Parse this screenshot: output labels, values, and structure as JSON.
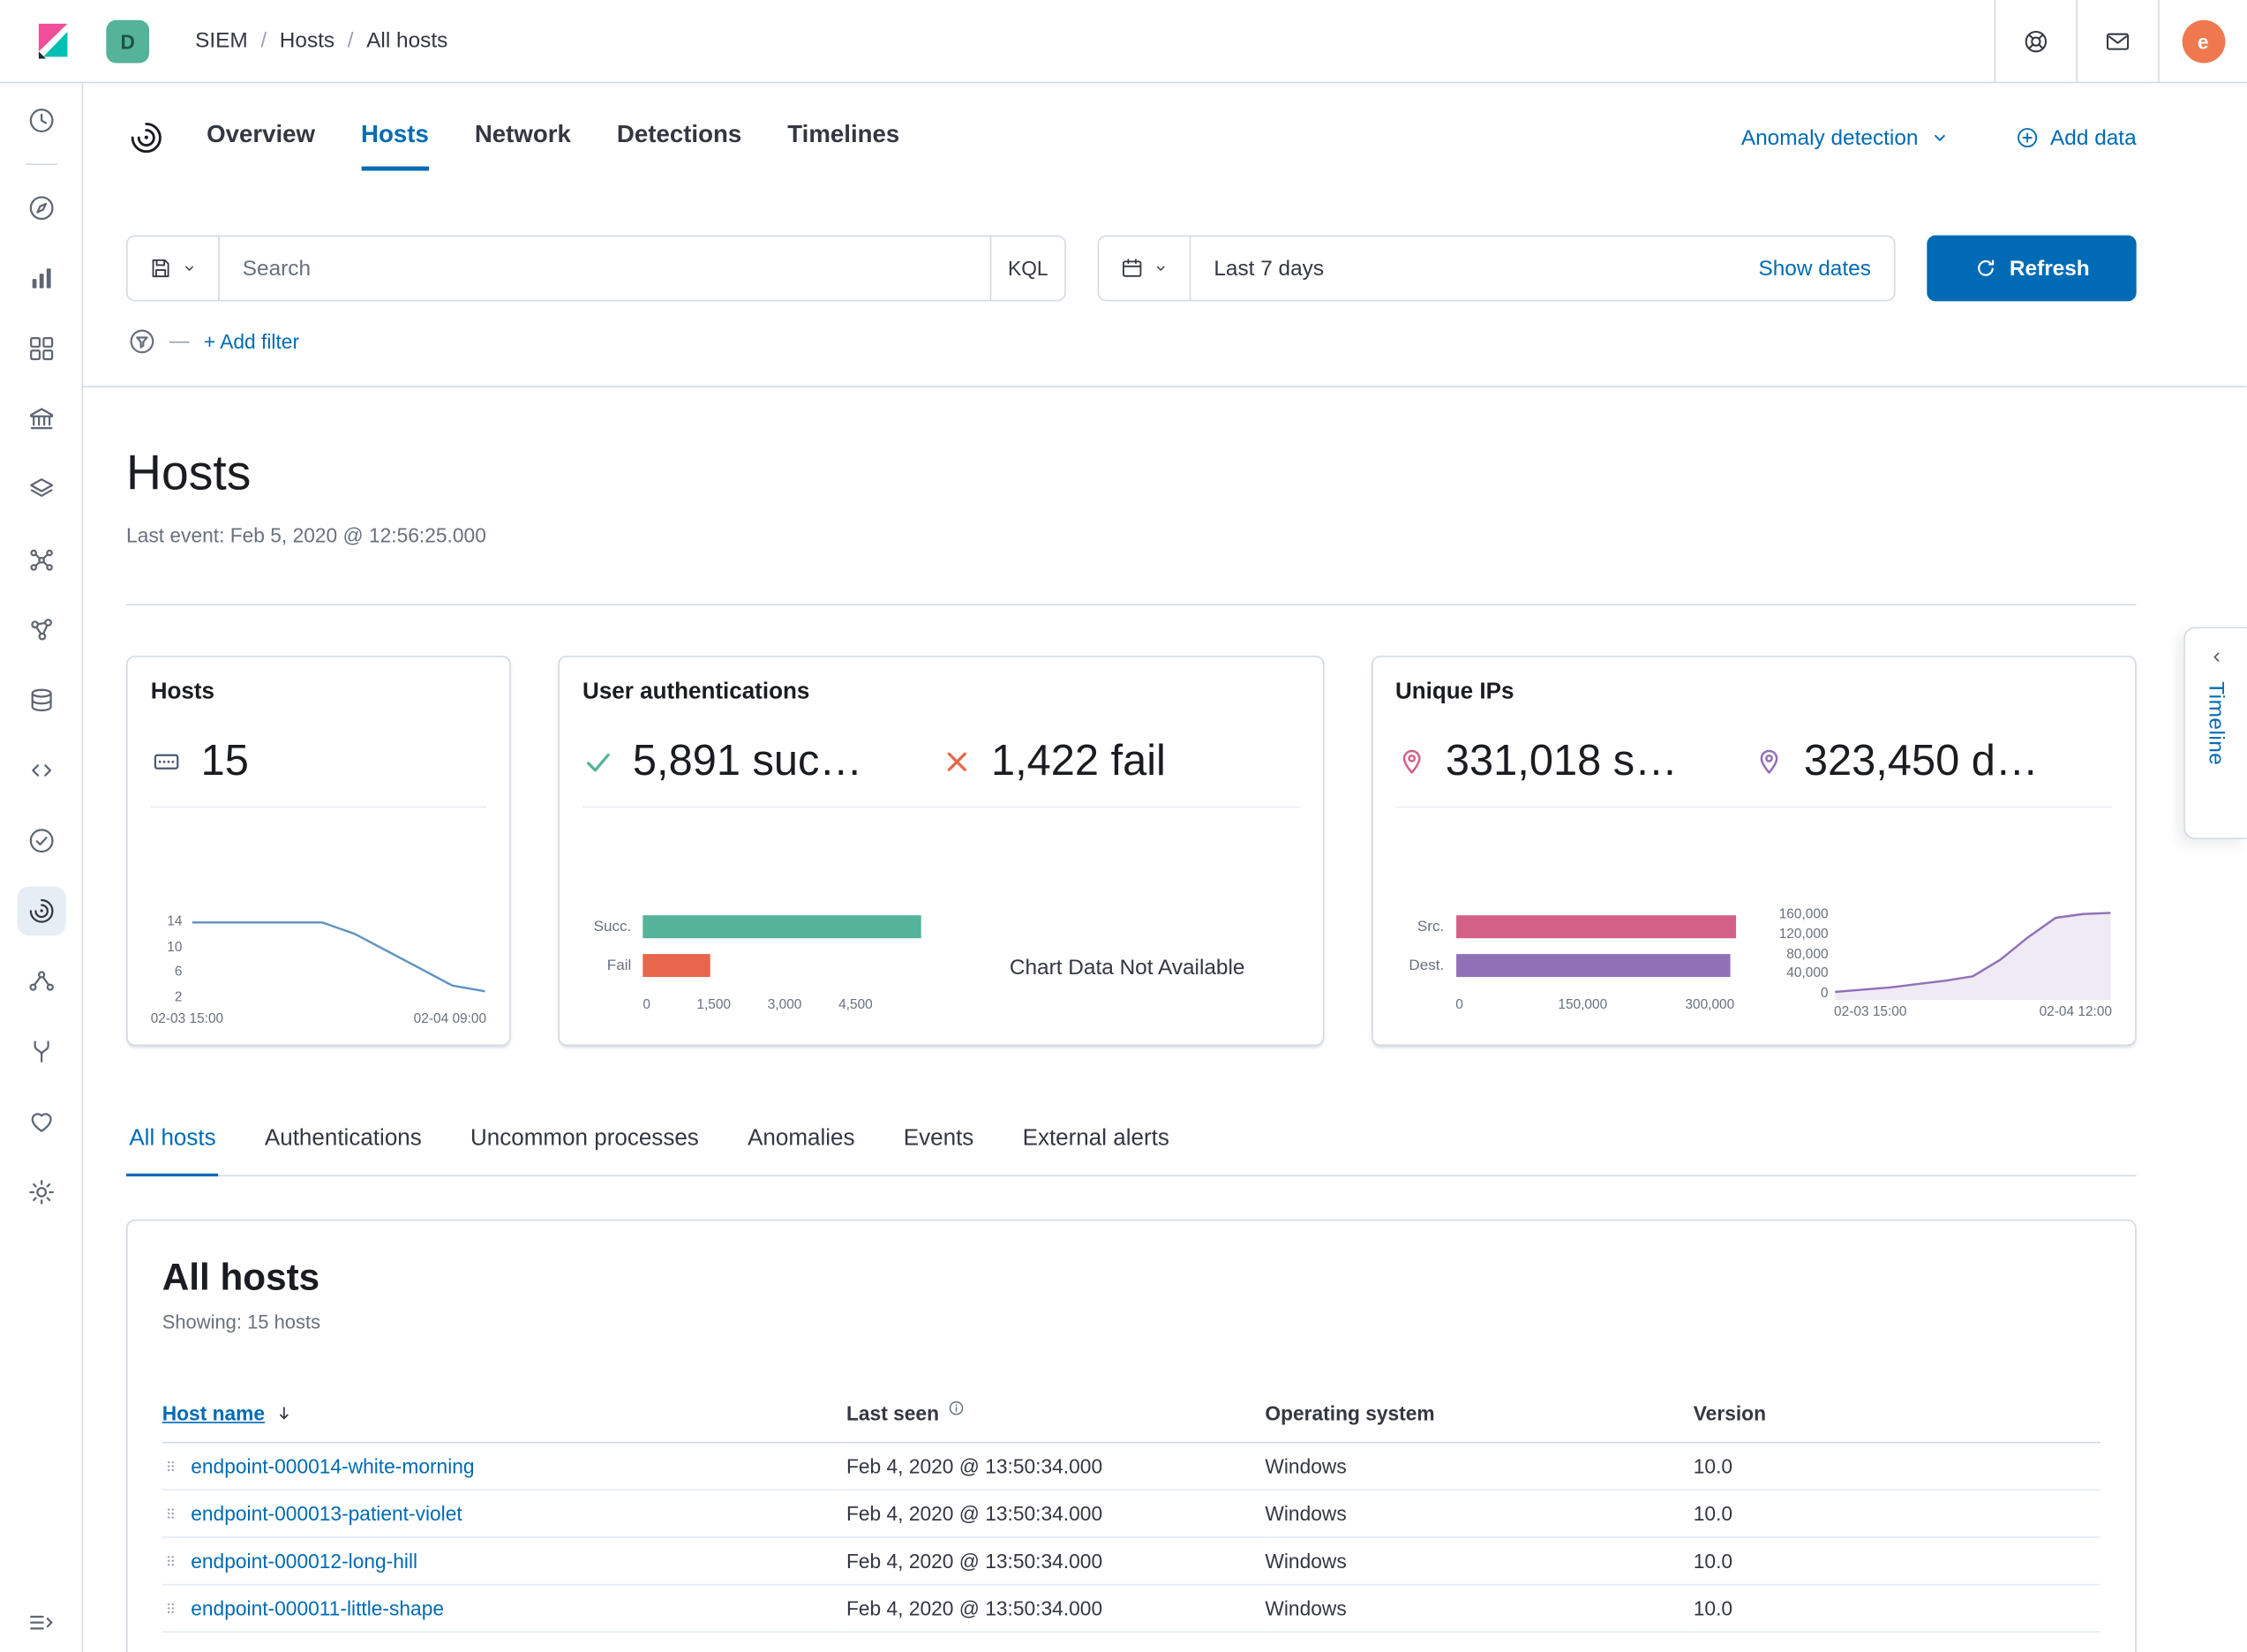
{
  "topbar": {
    "space_initial": "D",
    "breadcrumbs": [
      {
        "label": "SIEM",
        "link": true
      },
      {
        "label": "Hosts",
        "link": true
      },
      {
        "label": "All hosts",
        "link": false
      }
    ],
    "avatar_initial": "e"
  },
  "sidebar": {
    "items": [
      {
        "name": "recently-viewed",
        "icon": "clock"
      },
      {
        "divider": true
      },
      {
        "name": "discover",
        "icon": "compass"
      },
      {
        "name": "visualize",
        "icon": "bar-chart"
      },
      {
        "name": "dashboard",
        "icon": "dashboard"
      },
      {
        "name": "canvas",
        "icon": "bank"
      },
      {
        "name": "maps",
        "icon": "layers"
      },
      {
        "name": "machine-learning",
        "icon": "ml"
      },
      {
        "name": "graph",
        "icon": "graph"
      },
      {
        "name": "metrics",
        "icon": "database"
      },
      {
        "name": "logs",
        "icon": "code"
      },
      {
        "name": "uptime",
        "icon": "check-circle"
      },
      {
        "name": "siem",
        "icon": "siem",
        "active": true
      },
      {
        "name": "apm",
        "icon": "pipeline"
      },
      {
        "name": "dev-tools",
        "icon": "fork"
      },
      {
        "name": "stack-monitoring",
        "icon": "heart"
      },
      {
        "name": "management",
        "icon": "gear"
      }
    ]
  },
  "siem_nav": {
    "tabs": [
      {
        "label": "Overview"
      },
      {
        "label": "Hosts",
        "active": true
      },
      {
        "label": "Network"
      },
      {
        "label": "Detections"
      },
      {
        "label": "Timelines"
      }
    ],
    "anomaly_detection": "Anomaly detection",
    "add_data": "Add data"
  },
  "query_bar": {
    "search_placeholder": "Search",
    "kql": "KQL",
    "date_range": "Last 7 days",
    "show_dates": "Show dates",
    "refresh": "Refresh",
    "add_filter": "+ Add filter"
  },
  "page": {
    "title": "Hosts",
    "last_event": "Last event: Feb 5, 2020 @ 12:56:25.000"
  },
  "cards": {
    "hosts": {
      "title": "Hosts",
      "count": "15",
      "chart": {
        "type": "line",
        "color": "#6092C0",
        "ymax": 15,
        "values": [
          14,
          14,
          14,
          14,
          14,
          12,
          9,
          6,
          3,
          2
        ],
        "yticks": [
          "14",
          "10",
          "6",
          "2"
        ],
        "xticks": [
          "02-03 15:00",
          "02-04 09:00"
        ]
      }
    },
    "auth": {
      "title": "User authentications",
      "success_text": "5,891 suc…",
      "fail_text": "1,422 fail",
      "success_value": 5891,
      "fail_value": 1422,
      "bars": {
        "max": 6000,
        "rows": [
          {
            "label": "Succ.",
            "value": 5891,
            "color": "#54B399"
          },
          {
            "label": "Fail",
            "value": 1422,
            "color": "#E7664C"
          }
        ],
        "ticks": [
          {
            "label": "0",
            "value": 0
          },
          {
            "label": "1,500",
            "value": 1500
          },
          {
            "label": "3,000",
            "value": 3000
          },
          {
            "label": "4,500",
            "value": 4500
          }
        ]
      },
      "no_data": "Chart Data Not Available"
    },
    "ips": {
      "title": "Unique IPs",
      "source_text": "331,018 s…",
      "dest_text": "323,450 d…",
      "source_value": 331018,
      "dest_value": 323450,
      "bars": {
        "max": 335000,
        "rows": [
          {
            "label": "Src.",
            "value": 331018,
            "color": "#D36086"
          },
          {
            "label": "Dest.",
            "value": 323450,
            "color": "#9170B8"
          }
        ],
        "ticks": [
          {
            "label": "0",
            "value": 0
          },
          {
            "label": "150,000",
            "value": 150000
          },
          {
            "label": "300,000",
            "value": 300000
          }
        ]
      },
      "area": {
        "type": "area",
        "color": "#9170B8",
        "fill": true,
        "ymax": 160000,
        "values": [
          12000,
          16000,
          20000,
          26000,
          32000,
          40000,
          70000,
          110000,
          145000,
          152000,
          154000
        ],
        "yticks": [
          "160,000",
          "120,000",
          "80,000",
          "40,000",
          "0"
        ],
        "xticks": [
          "02-03 15:00",
          "02-04 12:00"
        ]
      }
    }
  },
  "host_tabs": [
    {
      "label": "All hosts",
      "active": true
    },
    {
      "label": "Authentications"
    },
    {
      "label": "Uncommon processes"
    },
    {
      "label": "Anomalies"
    },
    {
      "label": "Events"
    },
    {
      "label": "External alerts"
    }
  ],
  "all_hosts": {
    "title": "All hosts",
    "showing": "Showing: 15 hosts",
    "columns": [
      "Host name",
      "Last seen",
      "Operating system",
      "Version"
    ],
    "rows": [
      {
        "host": "endpoint-000014-white-morning",
        "last_seen": "Feb 4, 2020 @ 13:50:34.000",
        "os": "Windows",
        "version": "10.0"
      },
      {
        "host": "endpoint-000013-patient-violet",
        "last_seen": "Feb 4, 2020 @ 13:50:34.000",
        "os": "Windows",
        "version": "10.0"
      },
      {
        "host": "endpoint-000012-long-hill",
        "last_seen": "Feb 4, 2020 @ 13:50:34.000",
        "os": "Windows",
        "version": "10.0"
      },
      {
        "host": "endpoint-000011-little-shape",
        "last_seen": "Feb 4, 2020 @ 13:50:34.000",
        "os": "Windows",
        "version": "10.0"
      }
    ]
  },
  "timeline": {
    "label": "Timeline"
  },
  "colors": {
    "primary": "#006BB4",
    "success": "#54B399",
    "danger": "#E7664C",
    "pink": "#D36086",
    "purple": "#9170B8",
    "line_blue": "#6092C0",
    "border": "#D3DAE6",
    "text": "#343741",
    "subdued": "#69707D",
    "avatar": "#F0784F",
    "space_badge": "#54B399"
  }
}
